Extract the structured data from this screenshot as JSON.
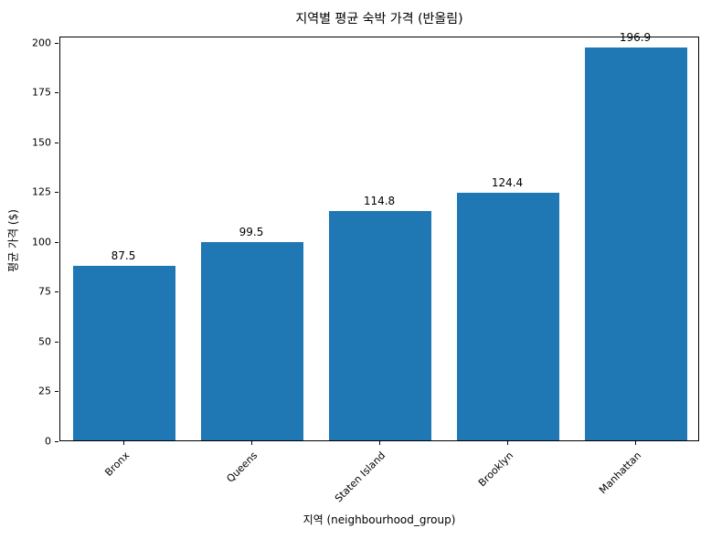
{
  "chart_data": {
    "type": "bar",
    "title": "지역별 평균 숙박 가격 (반올림)",
    "xlabel": "지역 (neighbourhood_group)",
    "ylabel": "평균 가격 ($)",
    "categories": [
      "Bronx",
      "Queens",
      "Staten Island",
      "Brooklyn",
      "Manhattan"
    ],
    "values": [
      87.5,
      99.5,
      114.8,
      124.4,
      196.9
    ],
    "value_labels": [
      "87.5",
      "99.5",
      "114.8",
      "124.4",
      "196.9"
    ],
    "yticks": [
      0,
      25,
      50,
      75,
      100,
      125,
      150,
      175,
      200
    ],
    "ylim": [
      0,
      203
    ],
    "bar_color": "#1f77b4",
    "grid": false,
    "legend": "none",
    "x_tick_rotation_deg": 45
  }
}
